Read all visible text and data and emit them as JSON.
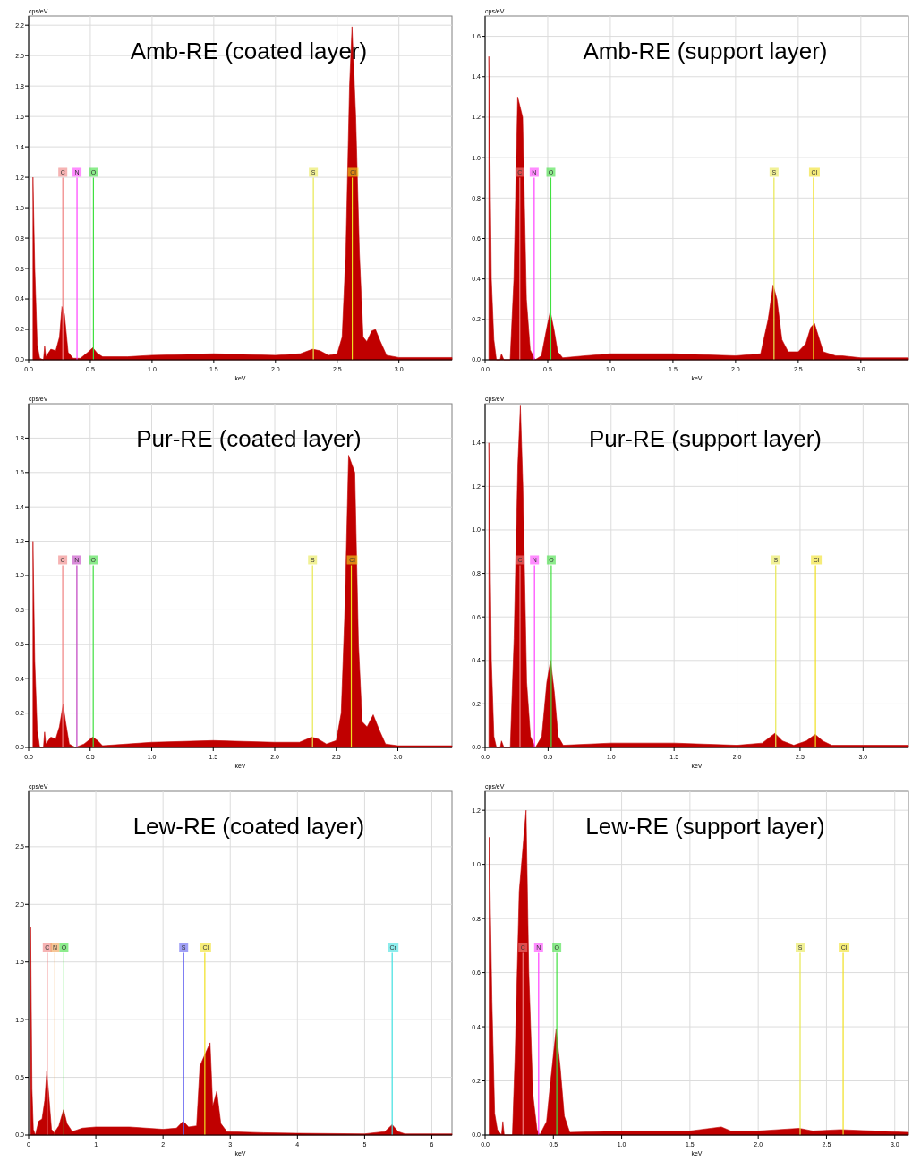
{
  "chart_data": [
    {
      "type": "area",
      "title": "Amb-RE (coated layer)",
      "xlabel": "keV",
      "ylabel": "cps/eV",
      "grid": true,
      "x": [
        0.035,
        0.05,
        0.07,
        0.09,
        0.12,
        0.13,
        0.14,
        0.18,
        0.22,
        0.25,
        0.27,
        0.29,
        0.32,
        0.36,
        0.42,
        0.48,
        0.52,
        0.56,
        0.6,
        0.8,
        1.0,
        1.5,
        2.0,
        2.2,
        2.3,
        2.36,
        2.43,
        2.5,
        2.54,
        2.57,
        2.6,
        2.62,
        2.65,
        2.68,
        2.71,
        2.74,
        2.78,
        2.81,
        2.85,
        2.9,
        3.0,
        3.43
      ],
      "series": [
        {
          "color": "#c00000",
          "values": [
            1.2,
            0.6,
            0.1,
            0.01,
            0,
            0.09,
            0.02,
            0.07,
            0.06,
            0.15,
            0.35,
            0.3,
            0.05,
            0.01,
            0.01,
            0.05,
            0.08,
            0.04,
            0.02,
            0.02,
            0.03,
            0.04,
            0.03,
            0.04,
            0.07,
            0.06,
            0.03,
            0.04,
            0.15,
            0.7,
            1.8,
            2.19,
            1.6,
            0.7,
            0.15,
            0.12,
            0.19,
            0.2,
            0.12,
            0.03,
            0.015,
            0.015
          ]
        }
      ],
      "xlim": [
        0,
        3.43
      ],
      "ylim": [
        0,
        2.26
      ],
      "xticks": [
        {
          "value": 0,
          "label": "0.0"
        },
        0.5,
        {
          "value": 1,
          "label": "1.0"
        },
        1.5,
        {
          "value": 2,
          "label": "2.0"
        },
        2.5,
        {
          "value": 3,
          "label": "3.0"
        }
      ],
      "yticks": [
        {
          "value": 0,
          "label": "0.0"
        },
        0.2,
        0.4,
        0.6,
        0.8,
        {
          "value": 1,
          "label": "1.0"
        },
        1.2,
        1.4,
        1.6,
        1.8,
        {
          "value": 2,
          "label": "2.0"
        },
        2.2
      ],
      "ref_lines": [
        {
          "axis": "x",
          "value": 0.277,
          "label": "C",
          "color": "#f08080"
        },
        {
          "axis": "x",
          "value": 0.392,
          "label": "N",
          "color": "#ff40ff"
        },
        {
          "axis": "x",
          "value": 0.525,
          "label": "O",
          "color": "#40e040"
        },
        {
          "axis": "x",
          "value": 2.307,
          "label": "S",
          "color": "#e8e850"
        },
        {
          "axis": "x",
          "value": 2.622,
          "label": "Cl",
          "color": "#f0e020"
        }
      ]
    },
    {
      "type": "area",
      "title": "Amb-RE (support layer)",
      "xlabel": "keV",
      "ylabel": "cps/eV",
      "grid": true,
      "x": [
        0.03,
        0.05,
        0.07,
        0.09,
        0.12,
        0.13,
        0.15,
        0.2,
        0.23,
        0.26,
        0.28,
        0.3,
        0.33,
        0.36,
        0.4,
        0.45,
        0.49,
        0.52,
        0.55,
        0.58,
        0.62,
        0.8,
        1.0,
        1.5,
        2.0,
        2.2,
        2.26,
        2.3,
        2.33,
        2.37,
        2.42,
        2.5,
        2.56,
        2.6,
        2.63,
        2.66,
        2.7,
        2.8,
        2.85,
        3.0,
        3.38
      ],
      "series": [
        {
          "color": "#c00000",
          "values": [
            1.5,
            0.4,
            0.1,
            0,
            0,
            0.03,
            0,
            0,
            0.4,
            1.3,
            null,
            1.2,
            0.3,
            0.05,
            0,
            0.02,
            0.15,
            0.24,
            0.15,
            0.04,
            0.01,
            0.02,
            0.03,
            0.03,
            0.02,
            0.03,
            0.2,
            0.37,
            0.3,
            0.1,
            0.04,
            0.04,
            0.08,
            0.16,
            0.18,
            0.12,
            0.04,
            0.02,
            0.02,
            0.01,
            0.01
          ]
        }
      ],
      "xlim": [
        0,
        3.38
      ],
      "ylim": [
        0,
        1.7
      ],
      "xticks": [
        {
          "value": 0,
          "label": "0.0"
        },
        0.5,
        {
          "value": 1,
          "label": "1.0"
        },
        1.5,
        {
          "value": 2,
          "label": "2.0"
        },
        2.5,
        {
          "value": 3,
          "label": "3.0"
        }
      ],
      "yticks": [
        {
          "value": 0,
          "label": "0.0"
        },
        0.2,
        0.4,
        0.6,
        0.8,
        {
          "value": 1,
          "label": "1.0"
        },
        1.2,
        1.4,
        1.6
      ],
      "ref_lines": [
        {
          "axis": "x",
          "value": 0.277,
          "label": "C",
          "color": "#f08080"
        },
        {
          "axis": "x",
          "value": 0.392,
          "label": "N",
          "color": "#ff40ff"
        },
        {
          "axis": "x",
          "value": 0.525,
          "label": "O",
          "color": "#40e040"
        },
        {
          "axis": "x",
          "value": 2.307,
          "label": "S",
          "color": "#e8e850"
        },
        {
          "axis": "x",
          "value": 2.622,
          "label": "Cl",
          "color": "#f0e020"
        }
      ]
    },
    {
      "type": "area",
      "title": "Pur-RE (coated layer)",
      "xlabel": "keV",
      "ylabel": "cps/eV",
      "grid": true,
      "x": [
        0.035,
        0.05,
        0.07,
        0.09,
        0.12,
        0.13,
        0.14,
        0.18,
        0.22,
        0.25,
        0.28,
        0.3,
        0.33,
        0.38,
        0.45,
        0.52,
        0.56,
        0.6,
        1.0,
        1.5,
        2.0,
        2.2,
        2.3,
        2.35,
        2.42,
        2.5,
        2.54,
        2.57,
        2.6,
        2.62,
        2.65,
        2.68,
        2.71,
        2.75,
        2.8,
        2.85,
        2.9,
        3.0,
        3.44
      ],
      "series": [
        {
          "color": "#c00000",
          "values": [
            1.2,
            0.5,
            0.1,
            0,
            0,
            0.09,
            0.02,
            0.06,
            0.05,
            0.12,
            0.25,
            0.15,
            0.02,
            0,
            0.02,
            0.06,
            0.04,
            0.01,
            0.03,
            0.04,
            0.03,
            0.03,
            0.06,
            0.05,
            0.02,
            0.04,
            0.2,
            0.8,
            1.7,
            null,
            1.6,
            0.6,
            0.15,
            0.12,
            0.19,
            0.1,
            0.02,
            0.01,
            0.01
          ]
        }
      ],
      "xlim": [
        0,
        3.44
      ],
      "ylim": [
        0,
        2.0
      ],
      "xticks": [
        {
          "value": 0,
          "label": "0.0"
        },
        0.5,
        {
          "value": 1,
          "label": "1.0"
        },
        1.5,
        {
          "value": 2,
          "label": "2.0"
        },
        2.5,
        {
          "value": 3,
          "label": "3.0"
        }
      ],
      "yticks": [
        {
          "value": 0,
          "label": "0.0"
        },
        0.2,
        0.4,
        0.6,
        0.8,
        {
          "value": 1,
          "label": "1.0"
        },
        1.2,
        1.4,
        1.6,
        1.8
      ],
      "ref_lines": [
        {
          "axis": "x",
          "value": 0.277,
          "label": "C",
          "color": "#f08080"
        },
        {
          "axis": "x",
          "value": 0.392,
          "label": "N",
          "color": "#c040c0"
        },
        {
          "axis": "x",
          "value": 0.525,
          "label": "O",
          "color": "#40e040"
        },
        {
          "axis": "x",
          "value": 2.307,
          "label": "S",
          "color": "#e8e850"
        },
        {
          "axis": "x",
          "value": 2.622,
          "label": "Cl",
          "color": "#f0e020"
        }
      ]
    },
    {
      "type": "area",
      "title": "Pur-RE (support layer)",
      "xlabel": "keV",
      "ylabel": "cps/eV",
      "grid": true,
      "x": [
        0.03,
        0.05,
        0.07,
        0.09,
        0.12,
        0.13,
        0.15,
        0.2,
        0.23,
        0.26,
        0.28,
        0.3,
        0.33,
        0.36,
        0.4,
        0.45,
        0.49,
        0.52,
        0.55,
        0.58,
        0.62,
        1.0,
        1.5,
        2.0,
        2.2,
        2.3,
        2.36,
        2.45,
        2.55,
        2.62,
        2.68,
        2.75,
        3.0,
        3.36
      ],
      "series": [
        {
          "color": "#c00000",
          "values": [
            1.4,
            0.4,
            0.05,
            0,
            0,
            0.03,
            0,
            0,
            0.5,
            1.3,
            1.57,
            1.2,
            0.3,
            0.05,
            0,
            0.05,
            0.3,
            0.4,
            0.25,
            0.05,
            0.01,
            0.02,
            0.02,
            0.01,
            0.02,
            0.065,
            0.03,
            0.01,
            0.03,
            0.06,
            0.03,
            0.01,
            0.01,
            0.01
          ]
        }
      ],
      "xlim": [
        0,
        3.36
      ],
      "ylim": [
        0,
        1.58
      ],
      "xticks": [
        {
          "value": 0,
          "label": "0.0"
        },
        0.5,
        {
          "value": 1,
          "label": "1.0"
        },
        1.5,
        {
          "value": 2,
          "label": "2.0"
        },
        2.5,
        {
          "value": 3,
          "label": "3.0"
        }
      ],
      "yticks": [
        {
          "value": 0,
          "label": "0.0"
        },
        0.2,
        0.4,
        0.6,
        0.8,
        {
          "value": 1,
          "label": "1.0"
        },
        1.2,
        1.4
      ],
      "ref_lines": [
        {
          "axis": "x",
          "value": 0.277,
          "label": "C",
          "color": "#f08080"
        },
        {
          "axis": "x",
          "value": 0.392,
          "label": "N",
          "color": "#ff40ff"
        },
        {
          "axis": "x",
          "value": 0.525,
          "label": "O",
          "color": "#40e040"
        },
        {
          "axis": "x",
          "value": 2.307,
          "label": "S",
          "color": "#e8e850"
        },
        {
          "axis": "x",
          "value": 2.622,
          "label": "Cl",
          "color": "#f0e020"
        }
      ]
    },
    {
      "type": "area",
      "title": "Lew-RE (coated layer)",
      "xlabel": "keV",
      "ylabel": "cps/eV",
      "grid": true,
      "x": [
        0.03,
        0.05,
        0.07,
        0.1,
        0.15,
        0.2,
        0.24,
        0.27,
        0.3,
        0.34,
        0.38,
        0.45,
        0.52,
        0.57,
        0.65,
        0.8,
        1.0,
        1.5,
        2.0,
        2.2,
        2.3,
        2.38,
        2.5,
        2.55,
        2.58,
        2.66,
        2.7,
        2.74,
        2.8,
        2.86,
        2.95,
        3.5,
        4.0,
        5.0,
        5.3,
        5.41,
        5.5,
        5.6,
        6.3
      ],
      "series": [
        {
          "color": "#c00000",
          "values": [
            1.8,
            0.4,
            0.05,
            0,
            0.12,
            0.14,
            0.3,
            0.55,
            0.35,
            0.05,
            0.02,
            0.08,
            0.22,
            0.1,
            0.03,
            0.06,
            0.07,
            0.07,
            0.05,
            0.06,
            0.12,
            0.07,
            0.08,
            0.6,
            null,
            null,
            0.8,
            0.25,
            0.38,
            0.1,
            0.03,
            0.02,
            0.015,
            0.01,
            0.03,
            0.09,
            0.03,
            0.01,
            0.01
          ]
        }
      ],
      "xlim": [
        0,
        6.3
      ],
      "ylim": [
        0,
        2.98
      ],
      "xticks": [
        0,
        1,
        2,
        3,
        4,
        5,
        6
      ],
      "yticks": [
        {
          "value": 0,
          "label": "0.0"
        },
        0.5,
        {
          "value": 1,
          "label": "1.0"
        },
        1.5,
        {
          "value": 2,
          "label": "2.0"
        },
        2.5
      ],
      "ref_lines": [
        {
          "axis": "x",
          "value": 0.277,
          "label": "C",
          "color": "#f08080"
        },
        {
          "axis": "x",
          "value": 0.392,
          "label": "N",
          "color": "#f0a050"
        },
        {
          "axis": "x",
          "value": 0.525,
          "label": "O",
          "color": "#40e040"
        },
        {
          "axis": "x",
          "value": 2.307,
          "label": "S",
          "color": "#6060f0"
        },
        {
          "axis": "x",
          "value": 2.622,
          "label": "Cl",
          "color": "#f0e020"
        },
        {
          "axis": "x",
          "value": 5.41,
          "label": "Cr",
          "color": "#40e0e0"
        }
      ]
    },
    {
      "type": "area",
      "title": "Lew-RE (support layer)",
      "xlabel": "keV",
      "ylabel": "cps/eV",
      "grid": true,
      "x": [
        0.03,
        0.05,
        0.07,
        0.09,
        0.12,
        0.13,
        0.14,
        0.2,
        0.22,
        0.25,
        0.27,
        0.3,
        0.32,
        0.35,
        0.38,
        0.4,
        0.45,
        0.48,
        0.52,
        0.55,
        0.58,
        0.62,
        1.0,
        1.5,
        1.73,
        1.8,
        2.0,
        2.3,
        2.4,
        2.6,
        3.1
      ],
      "series": [
        {
          "color": "#c00000",
          "values": [
            1.1,
            0.5,
            0.08,
            0.02,
            0,
            0.05,
            0,
            0,
            0.3,
            0.9,
            null,
            1.2,
            0.6,
            0.15,
            0.02,
            0,
            0.05,
            0.2,
            0.39,
            0.25,
            0.07,
            0.01,
            0.015,
            0.015,
            0.03,
            0.015,
            0.015,
            0.025,
            0.015,
            0.02,
            0.01
          ]
        }
      ],
      "xlim": [
        0,
        3.1
      ],
      "ylim": [
        0,
        1.27
      ],
      "xticks": [
        {
          "value": 0,
          "label": "0.0"
        },
        0.5,
        {
          "value": 1,
          "label": "1.0"
        },
        1.5,
        {
          "value": 2,
          "label": "2.0"
        },
        2.5,
        {
          "value": 3,
          "label": "3.0"
        }
      ],
      "yticks": [
        {
          "value": 0,
          "label": "0.0"
        },
        0.2,
        0.4,
        0.6,
        0.8,
        {
          "value": 1,
          "label": "1.0"
        },
        1.2
      ],
      "ref_lines": [
        {
          "axis": "x",
          "value": 0.277,
          "label": "C",
          "color": "#f08080"
        },
        {
          "axis": "x",
          "value": 0.392,
          "label": "N",
          "color": "#ff40ff"
        },
        {
          "axis": "x",
          "value": 0.525,
          "label": "O",
          "color": "#40e040"
        },
        {
          "axis": "x",
          "value": 2.307,
          "label": "S",
          "color": "#e8e850"
        },
        {
          "axis": "x",
          "value": 2.622,
          "label": "Cl",
          "color": "#f0e020"
        }
      ]
    }
  ]
}
